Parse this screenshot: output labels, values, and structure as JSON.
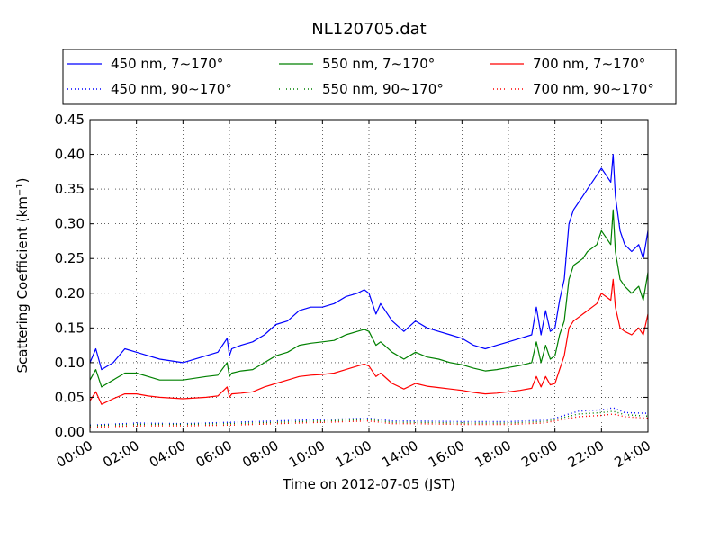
{
  "chart_data": {
    "type": "line",
    "title": "NL120705.dat",
    "xlabel": "Time on 2012-07-05 (JST)",
    "ylabel": "Scattering Coefficient (km",
    "ylabel_sup": "−1",
    "ylabel_end": ")",
    "xlim": [
      0,
      24
    ],
    "ylim": [
      0,
      0.45
    ],
    "grid": true,
    "legend_position": "top",
    "x_ticks": [
      {
        "v": 0,
        "label": "00:00"
      },
      {
        "v": 2,
        "label": "02:00"
      },
      {
        "v": 4,
        "label": "04:00"
      },
      {
        "v": 6,
        "label": "06:00"
      },
      {
        "v": 8,
        "label": "08:00"
      },
      {
        "v": 10,
        "label": "10:00"
      },
      {
        "v": 12,
        "label": "12:00"
      },
      {
        "v": 14,
        "label": "14:00"
      },
      {
        "v": 16,
        "label": "16:00"
      },
      {
        "v": 18,
        "label": "18:00"
      },
      {
        "v": 20,
        "label": "20:00"
      },
      {
        "v": 22,
        "label": "22:00"
      },
      {
        "v": 24,
        "label": "24:00"
      }
    ],
    "y_ticks": [
      {
        "v": 0,
        "label": "0.00"
      },
      {
        "v": 0.05,
        "label": "0.05"
      },
      {
        "v": 0.1,
        "label": "0.10"
      },
      {
        "v": 0.15,
        "label": "0.15"
      },
      {
        "v": 0.2,
        "label": "0.20"
      },
      {
        "v": 0.25,
        "label": "0.25"
      },
      {
        "v": 0.3,
        "label": "0.30"
      },
      {
        "v": 0.35,
        "label": "0.35"
      },
      {
        "v": 0.4,
        "label": "0.40"
      },
      {
        "v": 0.45,
        "label": "0.45"
      }
    ],
    "series": [
      {
        "name": "450 nm, 7∼170°",
        "color": "#0000ff",
        "style": "solid",
        "x": [
          0,
          0.25,
          0.5,
          1,
          1.5,
          2,
          2.5,
          3,
          4,
          5,
          5.5,
          5.9,
          6,
          6.1,
          6.5,
          7,
          7.5,
          8,
          8.5,
          9,
          9.5,
          10,
          10.5,
          11,
          11.5,
          11.8,
          12,
          12.3,
          12.5,
          13,
          13.5,
          14,
          14.5,
          15,
          15.5,
          16,
          16.5,
          17,
          17.5,
          18,
          18.5,
          19,
          19.2,
          19.4,
          19.6,
          19.8,
          20,
          20.2,
          20.4,
          20.6,
          20.8,
          21,
          21.2,
          21.4,
          21.6,
          21.8,
          22,
          22.2,
          22.4,
          22.5,
          22.6,
          22.8,
          23,
          23.3,
          23.6,
          23.8,
          24
        ],
        "y": [
          0.1,
          0.12,
          0.09,
          0.1,
          0.12,
          0.115,
          0.11,
          0.105,
          0.1,
          0.11,
          0.115,
          0.135,
          0.11,
          0.12,
          0.125,
          0.13,
          0.14,
          0.155,
          0.16,
          0.175,
          0.18,
          0.18,
          0.185,
          0.195,
          0.2,
          0.205,
          0.2,
          0.17,
          0.185,
          0.16,
          0.145,
          0.16,
          0.15,
          0.145,
          0.14,
          0.135,
          0.125,
          0.12,
          0.125,
          0.13,
          0.135,
          0.14,
          0.18,
          0.14,
          0.175,
          0.145,
          0.15,
          0.19,
          0.22,
          0.3,
          0.32,
          0.33,
          0.34,
          0.35,
          0.36,
          0.37,
          0.38,
          0.37,
          0.36,
          0.4,
          0.34,
          0.29,
          0.27,
          0.26,
          0.27,
          0.25,
          0.29
        ]
      },
      {
        "name": "550 nm, 7∼170°",
        "color": "#008000",
        "style": "solid",
        "x": [
          0,
          0.25,
          0.5,
          1,
          1.5,
          2,
          2.5,
          3,
          4,
          5,
          5.5,
          5.9,
          6,
          6.1,
          6.5,
          7,
          7.5,
          8,
          8.5,
          9,
          9.5,
          10,
          10.5,
          11,
          11.5,
          11.8,
          12,
          12.3,
          12.5,
          13,
          13.5,
          14,
          14.5,
          15,
          15.5,
          16,
          16.5,
          17,
          17.5,
          18,
          18.5,
          19,
          19.2,
          19.4,
          19.6,
          19.8,
          20,
          20.2,
          20.4,
          20.6,
          20.8,
          21,
          21.2,
          21.4,
          21.6,
          21.8,
          22,
          22.2,
          22.4,
          22.5,
          22.6,
          22.8,
          23,
          23.3,
          23.6,
          23.8,
          24
        ],
        "y": [
          0.075,
          0.09,
          0.065,
          0.075,
          0.085,
          0.085,
          0.08,
          0.075,
          0.075,
          0.08,
          0.082,
          0.1,
          0.08,
          0.085,
          0.088,
          0.09,
          0.1,
          0.11,
          0.115,
          0.125,
          0.128,
          0.13,
          0.132,
          0.14,
          0.145,
          0.148,
          0.145,
          0.125,
          0.13,
          0.115,
          0.105,
          0.115,
          0.108,
          0.105,
          0.1,
          0.097,
          0.092,
          0.088,
          0.09,
          0.093,
          0.096,
          0.1,
          0.13,
          0.1,
          0.125,
          0.105,
          0.11,
          0.14,
          0.16,
          0.22,
          0.24,
          0.245,
          0.25,
          0.26,
          0.265,
          0.27,
          0.29,
          0.28,
          0.27,
          0.32,
          0.26,
          0.22,
          0.21,
          0.2,
          0.21,
          0.19,
          0.23
        ]
      },
      {
        "name": "700 nm, 7∼170°",
        "color": "#ff0000",
        "style": "solid",
        "x": [
          0,
          0.25,
          0.5,
          1,
          1.5,
          2,
          2.5,
          3,
          4,
          5,
          5.5,
          5.9,
          6,
          6.1,
          6.5,
          7,
          7.5,
          8,
          8.5,
          9,
          9.5,
          10,
          10.5,
          11,
          11.5,
          11.8,
          12,
          12.3,
          12.5,
          13,
          13.5,
          14,
          14.5,
          15,
          15.5,
          16,
          16.5,
          17,
          17.5,
          18,
          18.5,
          19,
          19.2,
          19.4,
          19.6,
          19.8,
          20,
          20.2,
          20.4,
          20.6,
          20.8,
          21,
          21.2,
          21.4,
          21.6,
          21.8,
          22,
          22.2,
          22.4,
          22.5,
          22.6,
          22.8,
          23,
          23.3,
          23.6,
          23.8,
          24
        ],
        "y": [
          0.045,
          0.058,
          0.04,
          0.048,
          0.055,
          0.055,
          0.052,
          0.05,
          0.048,
          0.05,
          0.052,
          0.065,
          0.05,
          0.055,
          0.056,
          0.058,
          0.065,
          0.07,
          0.075,
          0.08,
          0.082,
          0.083,
          0.085,
          0.09,
          0.095,
          0.098,
          0.095,
          0.08,
          0.085,
          0.07,
          0.062,
          0.07,
          0.066,
          0.064,
          0.062,
          0.06,
          0.057,
          0.055,
          0.056,
          0.058,
          0.06,
          0.063,
          0.08,
          0.065,
          0.08,
          0.068,
          0.07,
          0.09,
          0.11,
          0.15,
          0.16,
          0.165,
          0.17,
          0.175,
          0.18,
          0.185,
          0.2,
          0.195,
          0.19,
          0.22,
          0.18,
          0.15,
          0.145,
          0.14,
          0.15,
          0.14,
          0.17
        ]
      },
      {
        "name": "450 nm, 90∼170°",
        "color": "#0000ff",
        "style": "dotted",
        "x": [
          0,
          2,
          4,
          6,
          8,
          10,
          12,
          13,
          14,
          16,
          18,
          19.5,
          20,
          20.5,
          21,
          22,
          22.5,
          23,
          24
        ],
        "y": [
          0.01,
          0.013,
          0.012,
          0.014,
          0.016,
          0.018,
          0.02,
          0.016,
          0.016,
          0.015,
          0.015,
          0.017,
          0.02,
          0.025,
          0.03,
          0.032,
          0.035,
          0.028,
          0.027
        ]
      },
      {
        "name": "550 nm, 90∼170°",
        "color": "#008000",
        "style": "dotted",
        "x": [
          0,
          2,
          4,
          6,
          8,
          10,
          12,
          13,
          14,
          16,
          18,
          19.5,
          20,
          20.5,
          21,
          22,
          22.5,
          23,
          24
        ],
        "y": [
          0.009,
          0.011,
          0.011,
          0.012,
          0.014,
          0.016,
          0.018,
          0.014,
          0.014,
          0.013,
          0.013,
          0.015,
          0.018,
          0.022,
          0.026,
          0.028,
          0.03,
          0.025,
          0.023
        ]
      },
      {
        "name": "700 nm, 90∼170°",
        "color": "#ff0000",
        "style": "dotted",
        "x": [
          0,
          2,
          4,
          6,
          8,
          10,
          12,
          13,
          14,
          16,
          18,
          19.5,
          20,
          20.5,
          21,
          22,
          22.5,
          23,
          24
        ],
        "y": [
          0.007,
          0.009,
          0.009,
          0.01,
          0.012,
          0.014,
          0.016,
          0.012,
          0.012,
          0.011,
          0.011,
          0.013,
          0.016,
          0.019,
          0.022,
          0.024,
          0.026,
          0.022,
          0.02
        ]
      }
    ]
  }
}
